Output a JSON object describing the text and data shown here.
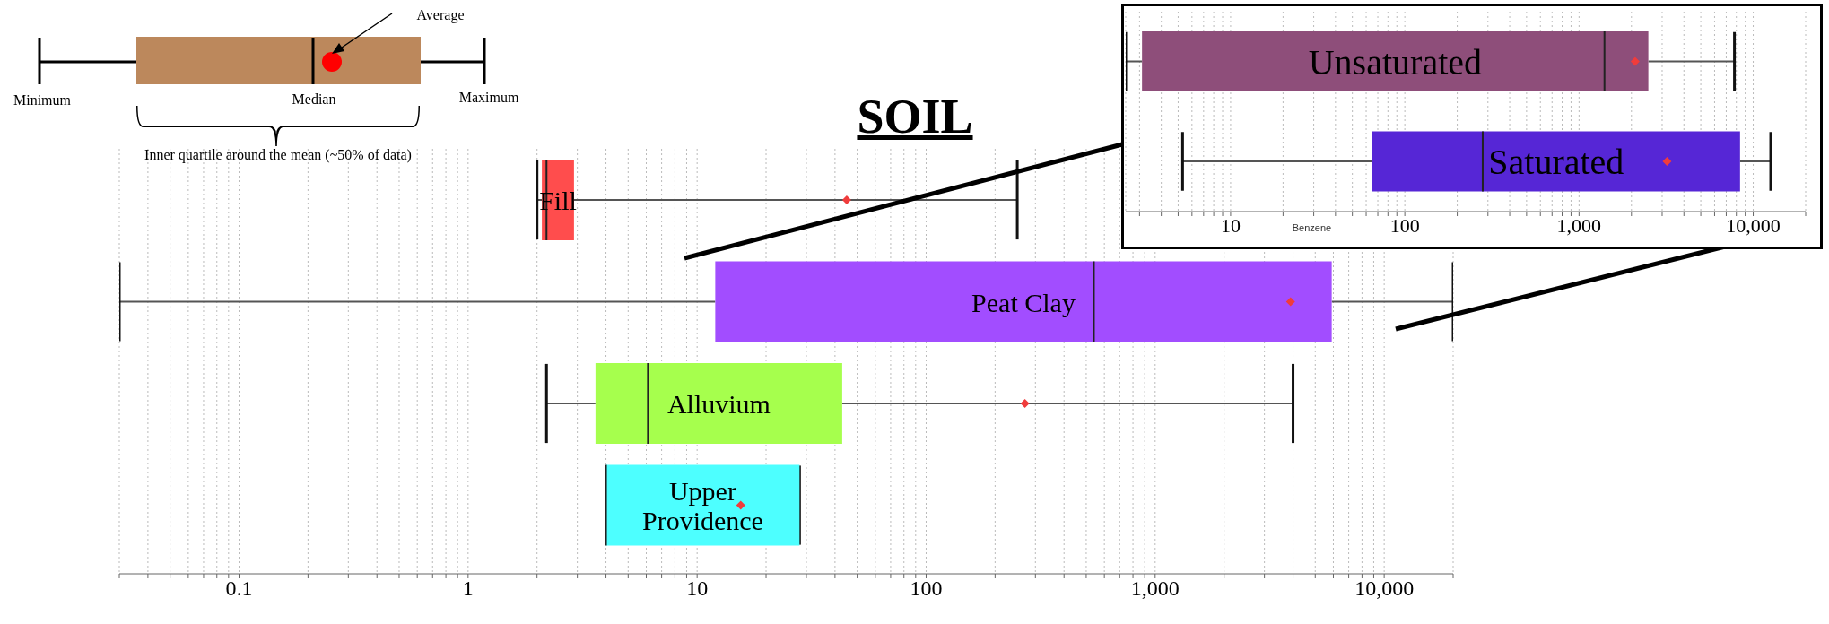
{
  "chart_data": [
    {
      "type": "box",
      "orientation": "horizontal",
      "title": "SOIL",
      "categories": [
        "Fill",
        "Peat Clay",
        "Alluvium",
        "Upper Providence"
      ],
      "colors": [
        "#ff4d4d",
        "#a24dff",
        "#a6ff4d",
        "#4dffff"
      ],
      "boxes": [
        {
          "low": 2,
          "q1": 2.1,
          "median": 2.2,
          "q3": 2.9,
          "high": 250,
          "mean": 45
        },
        {
          "low": 0.03,
          "q1": 12,
          "median": 540,
          "q3": 5900,
          "high": 20000,
          "mean": 3900
        },
        {
          "low": 2.2,
          "q1": 3.6,
          "median": 6.1,
          "q3": 43,
          "high": 4000,
          "mean": 270
        },
        {
          "low": 4,
          "q1": 4,
          "median": 4,
          "q3": 28,
          "high": 28,
          "mean": 15.5
        }
      ],
      "xlim": [
        0.03,
        20000
      ],
      "log": "x",
      "grid": "x",
      "tick_labels": "x",
      "xticks": [
        {
          "value": 0.03,
          "label": null
        },
        {
          "value": 0.04,
          "label": null
        },
        {
          "value": 0.05,
          "label": null
        },
        {
          "value": 0.06,
          "label": null
        },
        {
          "value": 0.07,
          "label": null
        },
        {
          "value": 0.08,
          "label": null
        },
        {
          "value": 0.09,
          "label": null
        },
        0.1,
        {
          "value": 0.2,
          "label": null
        },
        {
          "value": 0.3,
          "label": null
        },
        {
          "value": 0.4,
          "label": null
        },
        {
          "value": 0.5,
          "label": null
        },
        {
          "value": 0.6,
          "label": null
        },
        {
          "value": 0.7,
          "label": null
        },
        {
          "value": 0.8,
          "label": null
        },
        {
          "value": 0.9,
          "label": null
        },
        1,
        {
          "value": 2,
          "label": null
        },
        {
          "value": 3,
          "label": null
        },
        {
          "value": 4,
          "label": null
        },
        {
          "value": 5,
          "label": null
        },
        {
          "value": 6,
          "label": null
        },
        {
          "value": 7,
          "label": null
        },
        {
          "value": 8,
          "label": null
        },
        {
          "value": 9,
          "label": null
        },
        10,
        {
          "value": 20,
          "label": null
        },
        {
          "value": 30,
          "label": null
        },
        {
          "value": 40,
          "label": null
        },
        {
          "value": 50,
          "label": null
        },
        {
          "value": 60,
          "label": null
        },
        {
          "value": 70,
          "label": null
        },
        {
          "value": 80,
          "label": null
        },
        {
          "value": 90,
          "label": null
        },
        100,
        {
          "value": 200,
          "label": null
        },
        {
          "value": 300,
          "label": null
        },
        {
          "value": 400,
          "label": null
        },
        {
          "value": 500,
          "label": null
        },
        {
          "value": 600,
          "label": null
        },
        {
          "value": 700,
          "label": null
        },
        {
          "value": 800,
          "label": null
        },
        {
          "value": 900,
          "label": null
        },
        {
          "value": 1000,
          "label": "1,000"
        },
        {
          "value": 2000,
          "label": null
        },
        {
          "value": 3000,
          "label": null
        },
        {
          "value": 4000,
          "label": null
        },
        {
          "value": 5000,
          "label": null
        },
        {
          "value": 6000,
          "label": null
        },
        {
          "value": 7000,
          "label": null
        },
        {
          "value": 8000,
          "label": null
        },
        {
          "value": 9000,
          "label": null
        },
        {
          "value": 10000,
          "label": "10,000"
        },
        {
          "value": 20000,
          "label": null
        }
      ],
      "annotations": [
        "Average",
        "Minimum",
        "Median",
        "Maximum",
        "Inner quartile around the mean (~50% of data)"
      ]
    },
    {
      "type": "box",
      "orientation": "horizontal",
      "xlabel": "Benzene",
      "categories": [
        "Unsaturated",
        "Saturated"
      ],
      "colors": [
        "#8e4e7a",
        "#5626d6"
      ],
      "boxes": [
        {
          "low": 2.5,
          "q1": 3.1,
          "median": 1400,
          "q3": 2500,
          "high": 7800,
          "mean": 2100
        },
        {
          "low": 5.3,
          "q1": 65,
          "median": 280,
          "q3": 8400,
          "high": 12600,
          "mean": 3200
        }
      ],
      "xlim": [
        2.5,
        20000
      ],
      "log": "x",
      "grid": "x",
      "tick_labels": "x",
      "xticks": [
        {
          "value": 3,
          "label": null
        },
        {
          "value": 4,
          "label": null
        },
        {
          "value": 5,
          "label": null
        },
        {
          "value": 6,
          "label": null
        },
        {
          "value": 7,
          "label": null
        },
        {
          "value": 8,
          "label": null
        },
        {
          "value": 9,
          "label": null
        },
        10,
        {
          "value": 20,
          "label": null
        },
        {
          "value": 30,
          "label": null
        },
        {
          "value": 40,
          "label": null
        },
        {
          "value": 50,
          "label": null
        },
        {
          "value": 60,
          "label": null
        },
        {
          "value": 70,
          "label": null
        },
        {
          "value": 80,
          "label": null
        },
        {
          "value": 90,
          "label": null
        },
        100,
        {
          "value": 200,
          "label": null
        },
        {
          "value": 300,
          "label": null
        },
        {
          "value": 400,
          "label": null
        },
        {
          "value": 500,
          "label": null
        },
        {
          "value": 600,
          "label": null
        },
        {
          "value": 700,
          "label": null
        },
        {
          "value": 800,
          "label": null
        },
        {
          "value": 900,
          "label": null
        },
        {
          "value": 1000,
          "label": "1,000"
        },
        {
          "value": 2000,
          "label": null
        },
        {
          "value": 3000,
          "label": null
        },
        {
          "value": 4000,
          "label": null
        },
        {
          "value": 5000,
          "label": null
        },
        {
          "value": 6000,
          "label": null
        },
        {
          "value": 7000,
          "label": null
        },
        {
          "value": 8000,
          "label": null
        },
        {
          "value": 9000,
          "label": null
        },
        {
          "value": 10000,
          "label": "10,000"
        },
        {
          "value": 20000,
          "label": null
        }
      ]
    }
  ]
}
